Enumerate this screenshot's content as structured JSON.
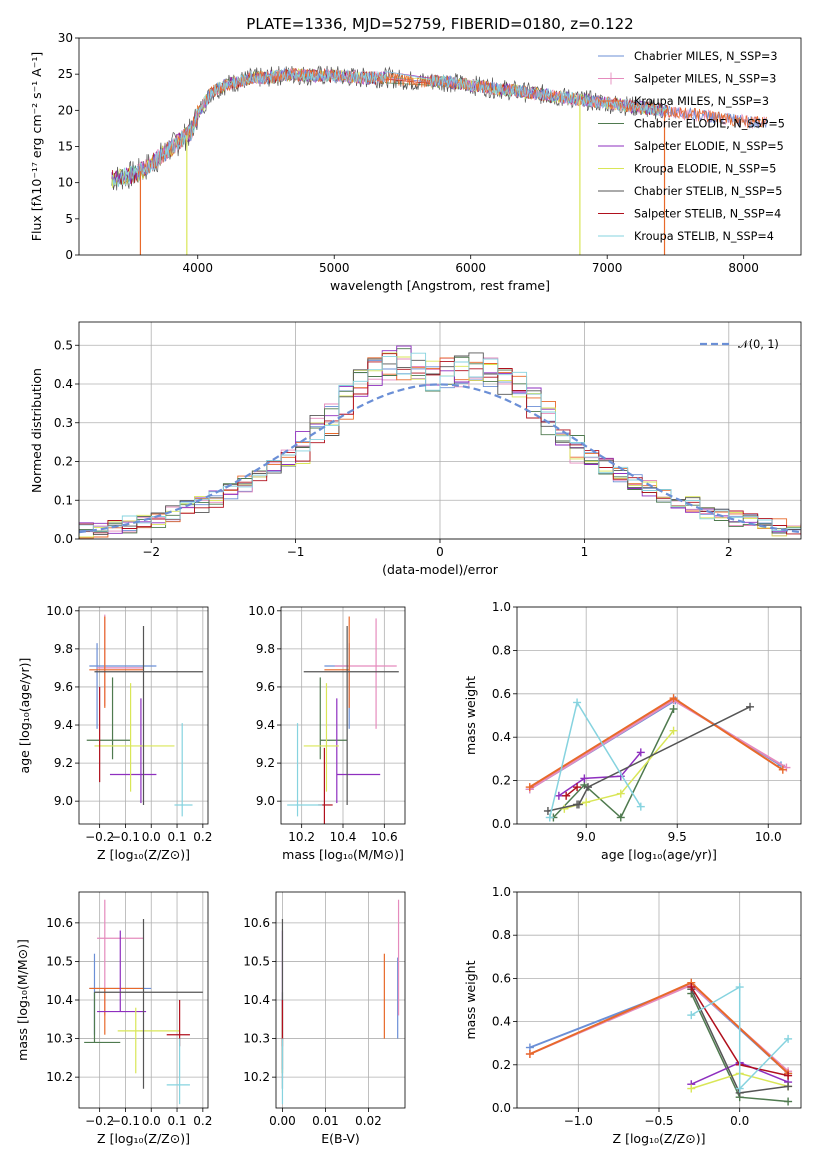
{
  "colors": [
    "#6b8fd6",
    "#e58bbd",
    "#e8692a",
    "#4f7a4f",
    "#8e2fbf",
    "#d9e657",
    "#555555",
    "#b0101d",
    "#86d3df"
  ],
  "chart_data": [
    {
      "type": "line",
      "title": "PLATE=1336, MJD=52759, FIBERID=0180, z=0.122",
      "xlabel": "wavelength [Angstrom, rest frame]",
      "ylabel": "Flux [fλ10⁻¹⁷ erg cm⁻² s⁻¹ A⁻¹]",
      "xlim": [
        3130,
        8420
      ],
      "ylim": [
        0,
        30
      ],
      "xticks": [
        4000,
        5000,
        6000,
        7000,
        8000
      ],
      "yticks": [
        0,
        5,
        10,
        15,
        20,
        25,
        30
      ],
      "legend_position": "top-right",
      "series": [
        {
          "name": "Chabrier MILES, N_SSP=3",
          "marker": "line"
        },
        {
          "name": "Salpeter MILES, N_SSP=3",
          "marker": "plus"
        },
        {
          "name": "Kroupa MILES, N_SSP=3",
          "marker": "line"
        },
        {
          "name": "Chabrier ELODIE, N_SSP=5",
          "marker": "line"
        },
        {
          "name": "Salpeter ELODIE, N_SSP=5",
          "marker": "line"
        },
        {
          "name": "Kroupa ELODIE, N_SSP=5",
          "marker": "line"
        },
        {
          "name": "Chabrier STELIB, N_SSP=5",
          "marker": "line"
        },
        {
          "name": "Salpeter STELIB, N_SSP=4",
          "marker": "line"
        },
        {
          "name": "Kroupa STELIB, N_SSP=4",
          "marker": "line"
        }
      ],
      "continuum": [
        [
          3370,
          10.5
        ],
        [
          3450,
          10.8
        ],
        [
          3550,
          11.2
        ],
        [
          3650,
          12.5
        ],
        [
          3750,
          14.0
        ],
        [
          3850,
          15.5
        ],
        [
          3950,
          17.0
        ],
        [
          4000,
          19.5
        ],
        [
          4100,
          22.5
        ],
        [
          4200,
          23.5
        ],
        [
          4300,
          24.0
        ],
        [
          4400,
          24.5
        ],
        [
          4500,
          24.5
        ],
        [
          4600,
          24.8
        ],
        [
          4700,
          25.0
        ],
        [
          4800,
          24.8
        ],
        [
          5000,
          24.8
        ],
        [
          5200,
          24.5
        ],
        [
          5400,
          24.5
        ],
        [
          5600,
          24.0
        ],
        [
          5800,
          24.0
        ],
        [
          6000,
          23.5
        ],
        [
          6200,
          23.0
        ],
        [
          6400,
          22.5
        ],
        [
          6600,
          22.0
        ],
        [
          6800,
          21.5
        ],
        [
          7000,
          21.0
        ],
        [
          7200,
          20.5
        ],
        [
          7400,
          20.0
        ],
        [
          7600,
          19.5
        ],
        [
          7800,
          19.0
        ],
        [
          8000,
          18.5
        ],
        [
          8170,
          18.2
        ]
      ],
      "noise_amplitude": 1.8,
      "dropouts": [
        [
          3580,
          0
        ],
        [
          3920,
          0
        ],
        [
          6800,
          0
        ],
        [
          7420,
          0
        ]
      ],
      "gap_region": [
        5380,
        5700
      ]
    },
    {
      "type": "histogram",
      "xlabel": "(data-model)/error",
      "ylabel": "Normed distribution",
      "xlim": [
        -2.5,
        2.5
      ],
      "ylim": [
        0,
        0.56
      ],
      "xticks": [
        -2,
        -1,
        0,
        1,
        2
      ],
      "yticks": [
        0.0,
        0.1,
        0.2,
        0.3,
        0.4,
        0.5
      ],
      "legend": [
        {
          "name": "𝒩(0, 1)",
          "style": "dashed",
          "color": "#6b8fd6"
        }
      ],
      "bin_width": 0.1,
      "gaussian": {
        "mu": 0,
        "sigma": 1
      },
      "envelope": [
        [
          -2.5,
          0.02
        ],
        [
          -2.0,
          0.045
        ],
        [
          -1.5,
          0.11
        ],
        [
          -1.0,
          0.22
        ],
        [
          -0.7,
          0.33
        ],
        [
          -0.5,
          0.42
        ],
        [
          -0.3,
          0.46
        ],
        [
          0,
          0.42
        ],
        [
          0.3,
          0.44
        ],
        [
          0.5,
          0.41
        ],
        [
          0.7,
          0.33
        ],
        [
          1.0,
          0.22
        ],
        [
          1.5,
          0.12
        ],
        [
          2.0,
          0.055
        ],
        [
          2.5,
          0.02
        ]
      ]
    },
    {
      "type": "errorbar",
      "xlabel": "Z [log₁₀(Z/Z⊙)]",
      "ylabel": "age  [log₁₀(age/yr)]",
      "xlim": [
        -0.28,
        0.22
      ],
      "ylim": [
        8.88,
        10.02
      ],
      "xticks": [
        -0.2,
        -0.1,
        0.0,
        0.1,
        0.2
      ],
      "yticks": [
        9.0,
        9.2,
        9.4,
        9.6,
        9.8,
        10.0
      ],
      "points": [
        {
          "x": -0.21,
          "xerr": [
            0.03,
            0.23
          ],
          "y": 9.71,
          "yerr": [
            0.33,
            0.12
          ],
          "c": 0
        },
        {
          "x": -0.18,
          "xerr": [
            0.03,
            0.15
          ],
          "y": 9.7,
          "yerr": [
            0.2,
            0.28
          ],
          "c": 1
        },
        {
          "x": -0.18,
          "xerr": [
            0.06,
            0.15
          ],
          "y": 9.69,
          "yerr": [
            0.2,
            0.28
          ],
          "c": 2
        },
        {
          "x": -0.15,
          "xerr": [
            0.1,
            0.07
          ],
          "y": 9.32,
          "yerr": [
            0.1,
            0.33
          ],
          "c": 3
        },
        {
          "x": -0.04,
          "xerr": [
            0.12,
            0.06
          ],
          "y": 9.14,
          "yerr": [
            0.15,
            0.4
          ],
          "c": 4
        },
        {
          "x": -0.08,
          "xerr": [
            0.14,
            0.17
          ],
          "y": 9.29,
          "yerr": [
            0.24,
            0.33
          ],
          "c": 5
        },
        {
          "x": -0.03,
          "xerr": [
            0.19,
            0.23
          ],
          "y": 9.68,
          "yerr": [
            0.7,
            0.24
          ],
          "c": 6
        },
        {
          "x": -0.2,
          "xerr": [
            0.0,
            0.0
          ],
          "y": 9.4,
          "yerr": [
            0.3,
            0.2
          ],
          "c": 7
        },
        {
          "x": 0.12,
          "xerr": [
            0.03,
            0.04
          ],
          "y": 8.98,
          "yerr": [
            0.06,
            0.43
          ],
          "c": 8
        }
      ]
    },
    {
      "type": "errorbar",
      "xlabel": "mass [log₁₀(M/M⊙)]",
      "ylabel": "",
      "xlim": [
        10.1,
        10.7
      ],
      "ylim": [
        8.88,
        10.02
      ],
      "xticks": [
        10.2,
        10.4,
        10.6
      ],
      "yticks": [
        9.0,
        9.2,
        9.4,
        9.6,
        9.8,
        10.0
      ],
      "points": [
        {
          "x": 10.43,
          "xerr": [
            0.12,
            0.0
          ],
          "y": 9.71,
          "yerr": [
            0.33,
            0.12
          ],
          "c": 0
        },
        {
          "x": 10.56,
          "xerr": [
            0.2,
            0.1
          ],
          "y": 9.71,
          "yerr": [
            0.33,
            0.25
          ],
          "c": 1
        },
        {
          "x": 10.43,
          "xerr": [
            0.12,
            0.0
          ],
          "y": 9.69,
          "yerr": [
            0.2,
            0.28
          ],
          "c": 2
        },
        {
          "x": 10.29,
          "xerr": [
            0.0,
            0.13
          ],
          "y": 9.32,
          "yerr": [
            0.1,
            0.33
          ],
          "c": 3
        },
        {
          "x": 10.37,
          "xerr": [
            0.0,
            0.21
          ],
          "y": 9.14,
          "yerr": [
            0.15,
            0.4
          ],
          "c": 4
        },
        {
          "x": 10.32,
          "xerr": [
            0.11,
            0.06
          ],
          "y": 9.29,
          "yerr": [
            0.24,
            0.33
          ],
          "c": 5
        },
        {
          "x": 10.42,
          "xerr": [
            0.21,
            0.25
          ],
          "y": 9.68,
          "yerr": [
            0.7,
            0.24
          ],
          "c": 6
        },
        {
          "x": 10.31,
          "xerr": [
            0.03,
            0.04
          ],
          "y": 8.98,
          "yerr": [
            0.1,
            0.3
          ],
          "c": 7
        },
        {
          "x": 10.18,
          "xerr": [
            0.05,
            0.12
          ],
          "y": 8.98,
          "yerr": [
            0.06,
            0.43
          ],
          "c": 8
        }
      ]
    },
    {
      "type": "line",
      "xlabel": "age  [log₁₀(age/yr)]",
      "ylabel": "mass weight",
      "xlim": [
        8.62,
        10.18
      ],
      "ylim": [
        0,
        1.0
      ],
      "xticks": [
        9.0,
        9.5,
        10.0
      ],
      "yticks": [
        0.0,
        0.2,
        0.4,
        0.6,
        0.8,
        1.0
      ],
      "series": [
        {
          "c": 0,
          "x": [
            8.69,
            9.49,
            10.07
          ],
          "y": [
            0.16,
            0.57,
            0.27
          ]
        },
        {
          "c": 1,
          "x": [
            8.69,
            9.48,
            10.1
          ],
          "y": [
            0.16,
            0.57,
            0.26
          ]
        },
        {
          "c": 2,
          "x": [
            8.69,
            9.48,
            10.08
          ],
          "y": [
            0.17,
            0.58,
            0.25
          ]
        },
        {
          "c": 3,
          "x": [
            8.82,
            8.99,
            9.19,
            9.48
          ],
          "y": [
            0.03,
            0.18,
            0.03,
            0.53
          ]
        },
        {
          "c": 4,
          "x": [
            8.85,
            8.99,
            9.19,
            9.3
          ],
          "y": [
            0.13,
            0.21,
            0.22,
            0.33
          ]
        },
        {
          "c": 5,
          "x": [
            8.88,
            9.0,
            9.19,
            9.48
          ],
          "y": [
            0.07,
            0.1,
            0.14,
            0.43
          ]
        },
        {
          "c": 6,
          "x": [
            8.79,
            8.95,
            8.96,
            9.01,
            9.9
          ],
          "y": [
            0.06,
            0.09,
            0.09,
            0.17,
            0.54
          ]
        },
        {
          "c": 7,
          "x": [
            8.89,
            8.95
          ],
          "y": [
            0.13,
            0.17
          ]
        },
        {
          "c": 8,
          "x": [
            8.8,
            8.95,
            9.3
          ],
          "y": [
            0.03,
            0.56,
            0.08
          ]
        }
      ]
    },
    {
      "type": "errorbar",
      "xlabel": "Z [log₁₀(Z/Z⊙)]",
      "ylabel": "mass [log₁₀(M/M⊙)]",
      "xlim": [
        -0.28,
        0.22
      ],
      "ylim": [
        10.12,
        10.68
      ],
      "xticks": [
        -0.2,
        -0.1,
        0.0,
        0.1,
        0.2
      ],
      "yticks": [
        10.2,
        10.3,
        10.4,
        10.5,
        10.6
      ],
      "points": [
        {
          "x": -0.22,
          "xerr": [
            0.02,
            0.22
          ],
          "y": 10.43,
          "yerr": [
            0.12,
            0.09
          ],
          "c": 0
        },
        {
          "x": -0.18,
          "xerr": [
            0.03,
            0.15
          ],
          "y": 10.56,
          "yerr": [
            0.2,
            0.1
          ],
          "c": 1
        },
        {
          "x": -0.18,
          "xerr": [
            0.06,
            0.15
          ],
          "y": 10.43,
          "yerr": [
            0.12,
            0.0
          ],
          "c": 2
        },
        {
          "x": -0.22,
          "xerr": [
            0.04,
            0.1
          ],
          "y": 10.29,
          "yerr": [
            0.0,
            0.13
          ],
          "c": 3
        },
        {
          "x": -0.12,
          "xerr": [
            0.09,
            0.1
          ],
          "y": 10.37,
          "yerr": [
            0.0,
            0.21
          ],
          "c": 4
        },
        {
          "x": -0.06,
          "xerr": [
            0.07,
            0.17
          ],
          "y": 10.32,
          "yerr": [
            0.11,
            0.06
          ],
          "c": 5
        },
        {
          "x": -0.03,
          "xerr": [
            0.19,
            0.23
          ],
          "y": 10.42,
          "yerr": [
            0.25,
            0.19
          ],
          "c": 6
        },
        {
          "x": 0.11,
          "xerr": [
            0.05,
            0.04
          ],
          "y": 10.31,
          "yerr": [
            0.03,
            0.09
          ],
          "c": 7
        },
        {
          "x": 0.11,
          "xerr": [
            0.05,
            0.04
          ],
          "y": 10.18,
          "yerr": [
            0.05,
            0.12
          ],
          "c": 8
        }
      ]
    },
    {
      "type": "errorbar",
      "xlabel": "E(B-V)",
      "ylabel": "",
      "xlim": [
        -0.0015,
        0.0285
      ],
      "ylim": [
        10.12,
        10.68
      ],
      "xticks": [
        0.0,
        0.01,
        0.02
      ],
      "yticks": [
        10.2,
        10.3,
        10.4,
        10.5,
        10.6
      ],
      "points": [
        {
          "x": 0.0268,
          "xerr": [
            0,
            0
          ],
          "y": 10.42,
          "yerr": [
            0.12,
            0.09
          ],
          "c": 0
        },
        {
          "x": 0.027,
          "xerr": [
            0,
            0
          ],
          "y": 10.56,
          "yerr": [
            0.2,
            0.1
          ],
          "c": 1
        },
        {
          "x": 0.0237,
          "xerr": [
            0,
            0
          ],
          "y": 10.42,
          "yerr": [
            0.12,
            0.1
          ],
          "c": 2
        },
        {
          "x": 0.0,
          "xerr": [
            0,
            0
          ],
          "y": 10.29,
          "yerr": [
            0.08,
            0.13
          ],
          "c": 3
        },
        {
          "x": 0.0,
          "xerr": [
            0,
            0
          ],
          "y": 10.37,
          "yerr": [
            0.15,
            0.21
          ],
          "c": 4
        },
        {
          "x": 0.0,
          "xerr": [
            0,
            0
          ],
          "y": 10.32,
          "yerr": [
            0.11,
            0.06
          ],
          "c": 5
        },
        {
          "x": 0.0,
          "xerr": [
            0,
            0
          ],
          "y": 10.42,
          "yerr": [
            0.25,
            0.19
          ],
          "c": 6
        },
        {
          "x": 0.0,
          "xerr": [
            0,
            0
          ],
          "y": 10.31,
          "yerr": [
            0.03,
            0.09
          ],
          "c": 7
        },
        {
          "x": 0.0,
          "xerr": [
            0,
            0
          ],
          "y": 10.18,
          "yerr": [
            0.05,
            0.12
          ],
          "c": 8
        }
      ]
    },
    {
      "type": "line",
      "xlabel": "Z [log₁₀(Z/Z⊙)]",
      "ylabel": "mass weight",
      "xlim": [
        -1.38,
        0.38
      ],
      "ylim": [
        0,
        1.0
      ],
      "xticks": [
        -1.0,
        -0.5,
        0.0
      ],
      "yticks": [
        0.0,
        0.2,
        0.4,
        0.6,
        0.8,
        1.0
      ],
      "series": [
        {
          "c": 0,
          "x": [
            -1.3,
            -0.3,
            0.3
          ],
          "y": [
            0.28,
            0.57,
            0.16
          ]
        },
        {
          "c": 1,
          "x": [
            -1.3,
            -0.3,
            0.3
          ],
          "y": [
            0.25,
            0.57,
            0.17
          ]
        },
        {
          "c": 2,
          "x": [
            -1.3,
            -0.3,
            0.3
          ],
          "y": [
            0.25,
            0.58,
            0.16
          ]
        },
        {
          "c": 3,
          "x": [
            -0.3,
            0.0,
            0.3
          ],
          "y": [
            0.53,
            0.05,
            0.03
          ]
        },
        {
          "c": 4,
          "x": [
            -0.3,
            0.0,
            0.3
          ],
          "y": [
            0.11,
            0.21,
            0.12
          ]
        },
        {
          "c": 5,
          "x": [
            -0.3,
            0.0,
            0.3
          ],
          "y": [
            0.09,
            0.16,
            0.1
          ]
        },
        {
          "c": 6,
          "x": [
            -0.3,
            0.0,
            0.3
          ],
          "y": [
            0.55,
            0.07,
            0.1
          ]
        },
        {
          "c": 7,
          "x": [
            -0.3,
            0.0,
            0.3
          ],
          "y": [
            0.56,
            0.2,
            0.15
          ]
        },
        {
          "c": 8,
          "x": [
            -0.3,
            0.0,
            0.0,
            0.3
          ],
          "y": [
            0.43,
            0.56,
            0.09,
            0.32
          ]
        }
      ]
    }
  ]
}
